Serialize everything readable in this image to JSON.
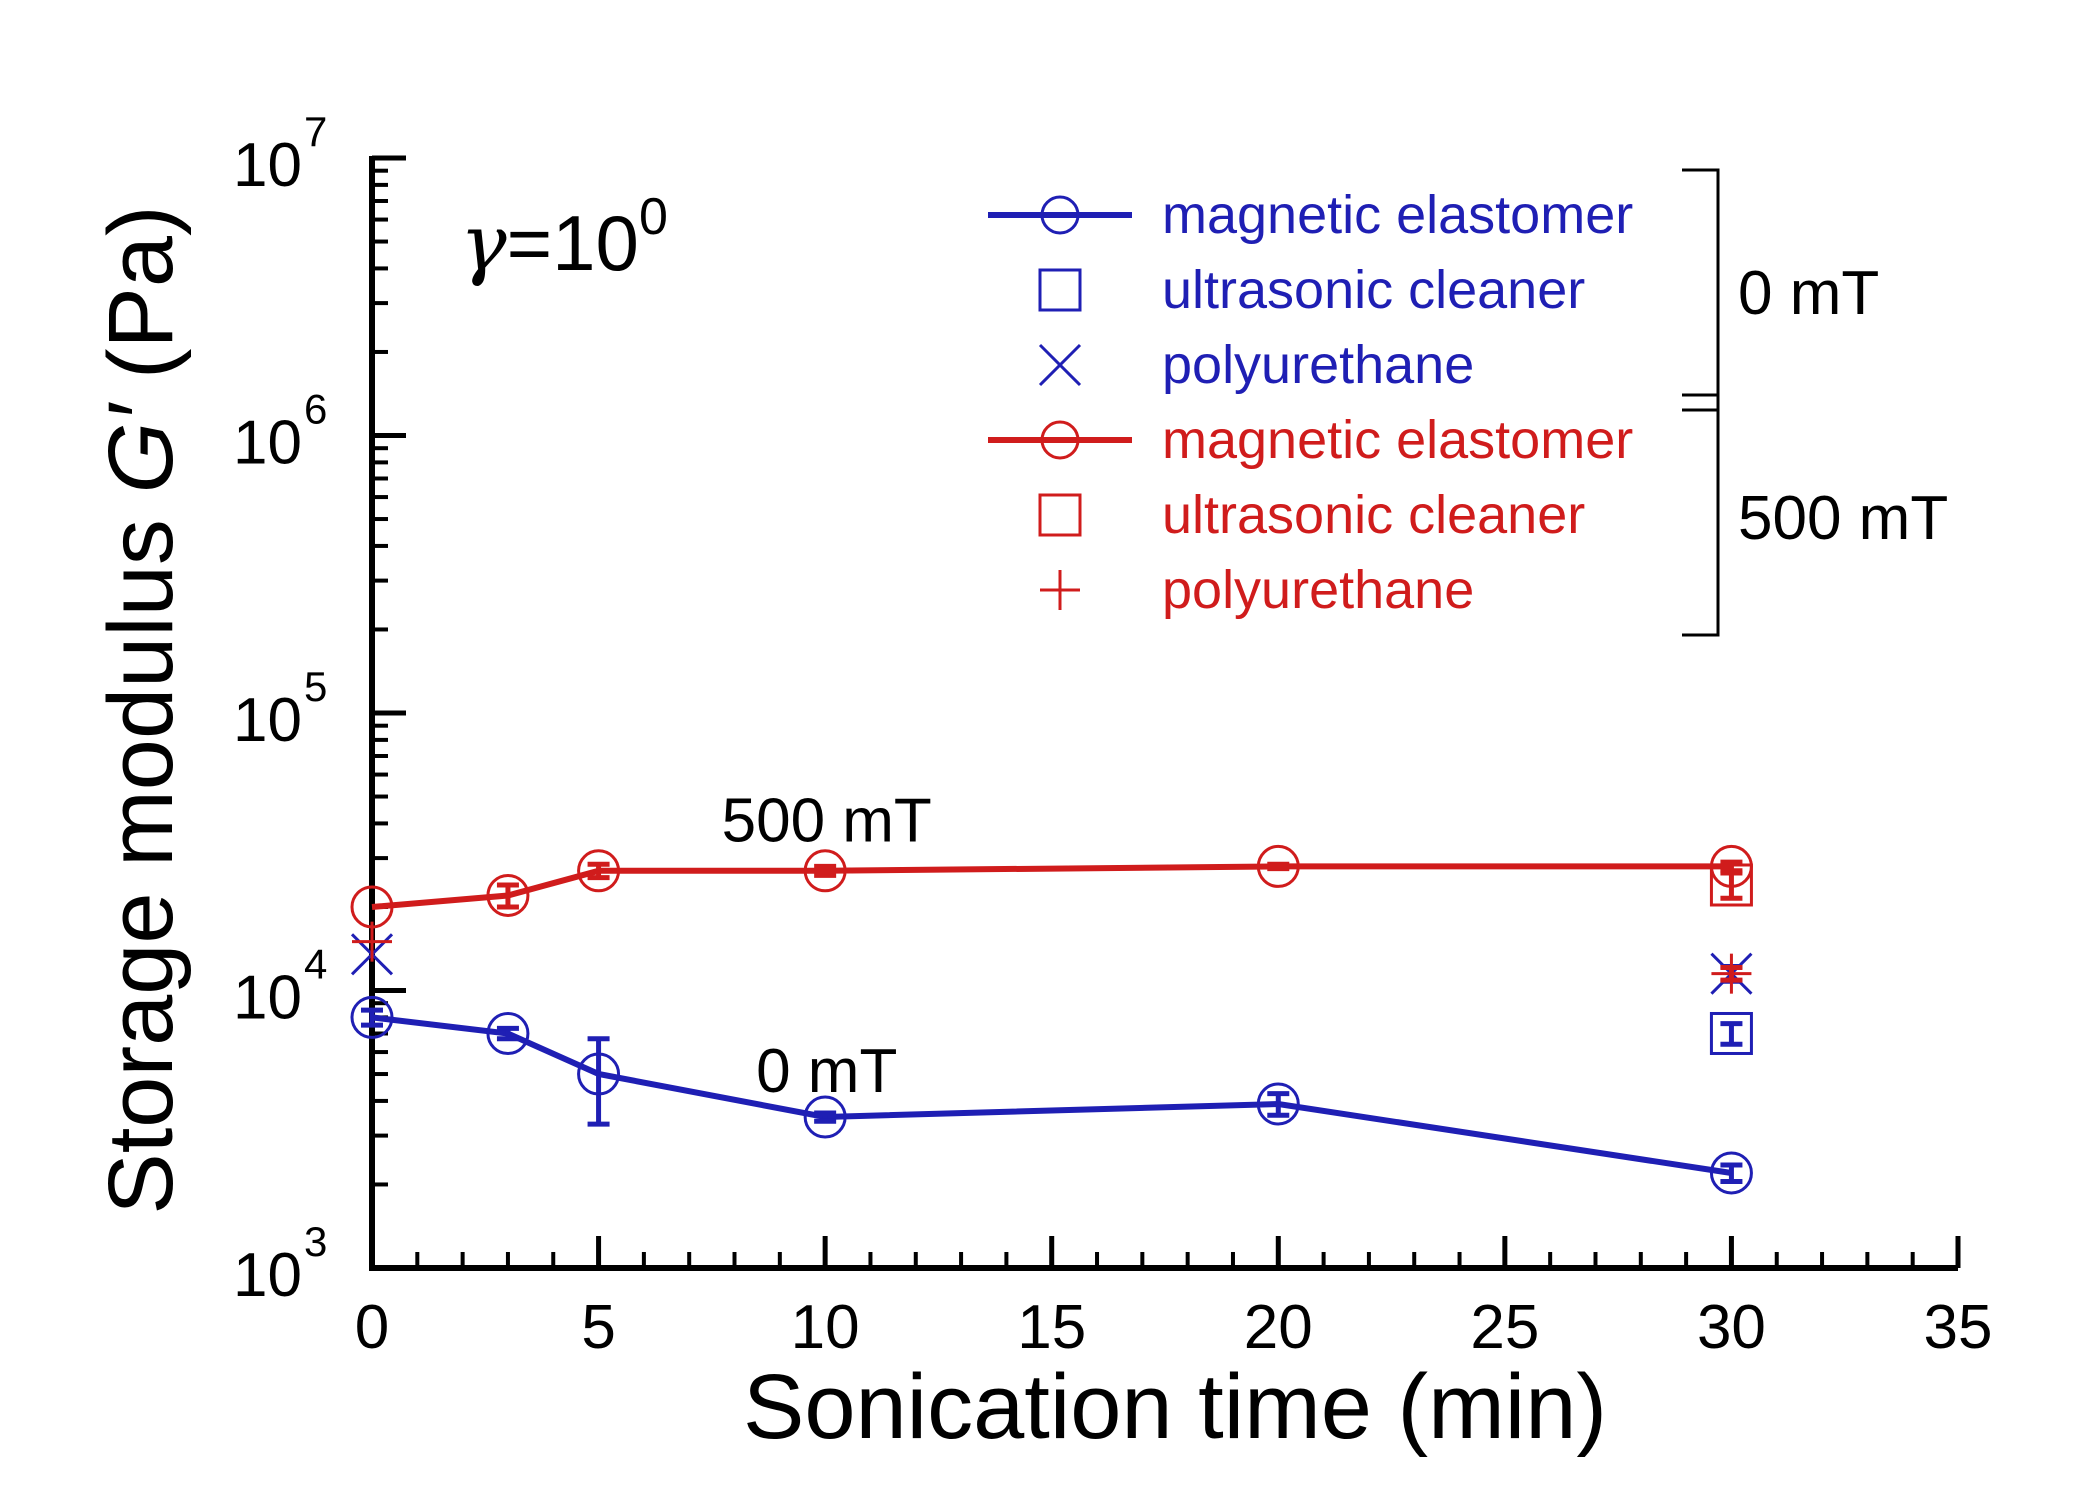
{
  "chart_data": {
    "type": "line",
    "title": "",
    "xlabel": "Sonication time (min)",
    "ylabel_prefix": "Storage modulus ",
    "ylabel_symbol": "G′",
    "ylabel_suffix": " (Pa)",
    "x_axis": {
      "min": 0,
      "max": 35,
      "ticks": [
        0,
        5,
        10,
        15,
        20,
        25,
        30,
        35
      ],
      "minor_step": 1
    },
    "y_axis": {
      "scale": "log",
      "min": 1000,
      "max": 10000000,
      "ticks": [
        {
          "value": 1000,
          "base": "10",
          "exp": "3"
        },
        {
          "value": 10000,
          "base": "10",
          "exp": "4"
        },
        {
          "value": 100000,
          "base": "10",
          "exp": "5"
        },
        {
          "value": 1000000,
          "base": "10",
          "exp": "6"
        },
        {
          "value": 10000000,
          "base": "10",
          "exp": "7"
        }
      ]
    },
    "strain_annotation": {
      "symbol": "γ",
      "text": "=10",
      "exp": "0"
    },
    "series": [
      {
        "name": "magnetic elastomer",
        "field": "0 mT",
        "color": "#1f1fb4",
        "marker": "circle",
        "line": true,
        "points": [
          {
            "x": 0,
            "y": 8000,
            "err": 500
          },
          {
            "x": 3,
            "y": 7000,
            "err": 300
          },
          {
            "x": 5,
            "y": 5000,
            "err": 1700
          },
          {
            "x": 10,
            "y": 3500,
            "err": 120
          },
          {
            "x": 20,
            "y": 3900,
            "err": 350
          },
          {
            "x": 30,
            "y": 2200,
            "err": 150
          }
        ]
      },
      {
        "name": "ultrasonic cleaner",
        "field": "0 mT",
        "color": "#1f1fb4",
        "marker": "square",
        "line": false,
        "points": [
          {
            "x": 30,
            "y": 7000,
            "err": 600
          }
        ]
      },
      {
        "name": "polyurethane",
        "field": "0 mT",
        "color": "#1f1fb4",
        "marker": "x",
        "line": false,
        "points": [
          {
            "x": 0,
            "y": 13500,
            "err": 0
          },
          {
            "x": 30,
            "y": 11500,
            "err": 700
          }
        ]
      },
      {
        "name": "magnetic elastomer",
        "field": "500 mT",
        "color": "#d01c1c",
        "marker": "circle",
        "line": true,
        "points": [
          {
            "x": 0,
            "y": 20000,
            "err": 0
          },
          {
            "x": 3,
            "y": 22000,
            "err": 2000
          },
          {
            "x": 5,
            "y": 27000,
            "err": 1500
          },
          {
            "x": 10,
            "y": 27000,
            "err": 1000
          },
          {
            "x": 20,
            "y": 28000,
            "err": 500
          },
          {
            "x": 30,
            "y": 28000,
            "err": 1000
          }
        ]
      },
      {
        "name": "ultrasonic cleaner",
        "field": "500 mT",
        "color": "#d01c1c",
        "marker": "square",
        "line": false,
        "points": [
          {
            "x": 30,
            "y": 24000,
            "err": 2500
          }
        ]
      },
      {
        "name": "polyurethane",
        "field": "500 mT",
        "color": "#d01c1c",
        "marker": "plus",
        "line": false,
        "points": [
          {
            "x": 0,
            "y": 15000,
            "err": 0
          },
          {
            "x": 30,
            "y": 11500,
            "err": 600
          }
        ]
      }
    ],
    "legend": {
      "placement": "top-right",
      "groups": [
        {
          "label": "0 mT",
          "entries": [
            {
              "text": "magnetic elastomer",
              "marker": "line-circle",
              "color": "#1f1fb4"
            },
            {
              "text": "ultrasonic cleaner",
              "marker": "square",
              "color": "#1f1fb4"
            },
            {
              "text": "polyurethane",
              "marker": "x",
              "color": "#1f1fb4"
            }
          ]
        },
        {
          "label": "500 mT",
          "entries": [
            {
              "text": "magnetic elastomer",
              "marker": "line-circle",
              "color": "#d01c1c"
            },
            {
              "text": "ultrasonic cleaner",
              "marker": "square",
              "color": "#d01c1c"
            },
            {
              "text": "polyurethane",
              "marker": "plus",
              "color": "#d01c1c"
            }
          ]
        }
      ]
    },
    "annotations": [
      {
        "text": "500 mT",
        "x": 15,
        "y": 40000
      },
      {
        "text": "0 mT",
        "x": 15,
        "y": 5000
      }
    ]
  }
}
